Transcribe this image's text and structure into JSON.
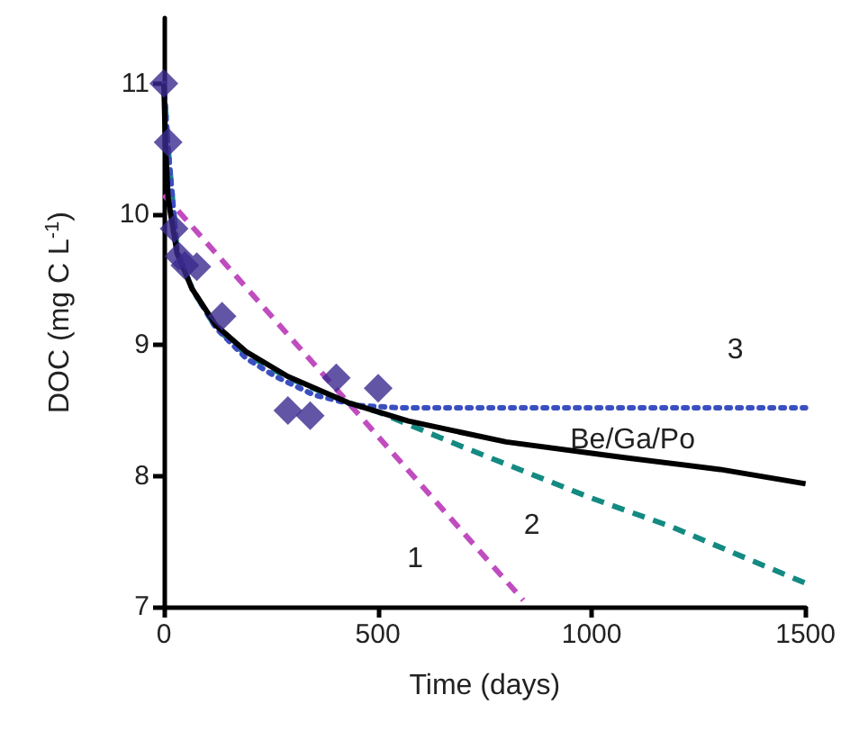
{
  "chart_data": {
    "type": "line",
    "xlabel": "Time (days)",
    "ylabel": "DOC (mg C L$^{-1}$)",
    "xlim": [
      0,
      1500
    ],
    "xticks": [
      0,
      500,
      1000,
      1500
    ],
    "ylim": [
      7,
      11.5
    ],
    "yticks": [
      7,
      8,
      9,
      10,
      11
    ],
    "grid": false,
    "series": [
      {
        "name": "1",
        "color": "#c04cc0",
        "line_style": "dashed",
        "x": [
          0,
          840
        ],
        "values": [
          10.15,
          7.05
        ]
      },
      {
        "name": "2",
        "color": "#138a82",
        "line_style": "dashed",
        "x": [
          0,
          10,
          31,
          66,
          122,
          192,
          290,
          431,
          500,
          700,
          1000,
          1188,
          1500
        ],
        "values": [
          11,
          10.5,
          9.72,
          9.43,
          9.13,
          8.93,
          8.75,
          8.56,
          8.49,
          8.22,
          7.83,
          7.61,
          7.18
        ]
      },
      {
        "name": "3",
        "color": "#3a4fc0",
        "line_style": "dotted",
        "x": [
          0,
          10,
          31,
          66,
          122,
          192,
          261,
          350,
          450,
          550,
          1500
        ],
        "values": [
          11,
          10.5,
          9.72,
          9.43,
          9.13,
          8.9,
          8.76,
          8.62,
          8.54,
          8.52,
          8.52
        ]
      },
      {
        "name": "Be/Ga/Po",
        "color": "#000000",
        "line_style": "solid",
        "x": [
          0,
          4,
          10,
          31,
          66,
          122,
          192,
          290,
          431,
          571,
          800,
          1076,
          1300,
          1500
        ],
        "values": [
          11,
          10.5,
          10.12,
          9.7,
          9.43,
          9.15,
          8.95,
          8.76,
          8.56,
          8.42,
          8.26,
          8.14,
          8.05,
          7.94
        ]
      },
      {
        "type": "scatter",
        "color": "#3b2a8f",
        "marker": "diamond",
        "x": [
          0,
          10,
          24,
          35,
          49,
          77,
          136,
          290,
          342,
          403,
          501
        ],
        "values": [
          11,
          10.55,
          9.89,
          9.68,
          9.61,
          9.6,
          9.22,
          8.5,
          8.46,
          8.75,
          8.67
        ]
      }
    ]
  }
}
